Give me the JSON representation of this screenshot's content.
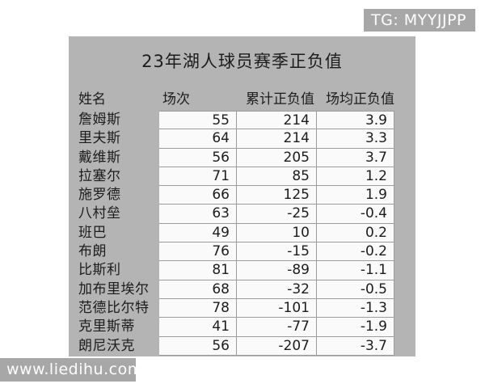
{
  "watermarks": {
    "telegram": "TG: MYYJJPP",
    "site": "www.liedihu.com"
  },
  "chart_data": {
    "type": "table",
    "title": "23年湖人球员赛季正负值",
    "columns": [
      "姓名",
      "场次",
      "累计正负值",
      "场均正负值"
    ],
    "rows": [
      {
        "name": "詹姆斯",
        "games": "55",
        "total": "214",
        "avg": "3.9"
      },
      {
        "name": "里夫斯",
        "games": "64",
        "total": "214",
        "avg": "3.3"
      },
      {
        "name": "戴维斯",
        "games": "56",
        "total": "205",
        "avg": "3.7"
      },
      {
        "name": "拉塞尔",
        "games": "71",
        "total": "85",
        "avg": "1.2"
      },
      {
        "name": "施罗德",
        "games": "66",
        "total": "125",
        "avg": "1.9"
      },
      {
        "name": "八村垒",
        "games": "63",
        "total": "-25",
        "avg": "-0.4"
      },
      {
        "name": "班巴",
        "games": "49",
        "total": "10",
        "avg": "0.2"
      },
      {
        "name": "布朗",
        "games": "76",
        "total": "-15",
        "avg": "-0.2"
      },
      {
        "name": "比斯利",
        "games": "81",
        "total": "-89",
        "avg": "-1.1"
      },
      {
        "name": "加布里埃尔",
        "games": "68",
        "total": "-32",
        "avg": "-0.5"
      },
      {
        "name": "范德比尔特",
        "games": "78",
        "total": "-101",
        "avg": "-1.3"
      },
      {
        "name": "克里斯蒂",
        "games": "41",
        "total": "-77",
        "avg": "-1.9"
      },
      {
        "name": "朗尼沃克",
        "games": "56",
        "total": "-207",
        "avg": "-3.7"
      }
    ]
  },
  "colors": {
    "canvas_bg": "#b4b4b4",
    "cell_bg": "#fafafa",
    "border": "#9c9c9c",
    "watermark_bg": "#a7a7a7",
    "text": "#1c1c1c"
  }
}
